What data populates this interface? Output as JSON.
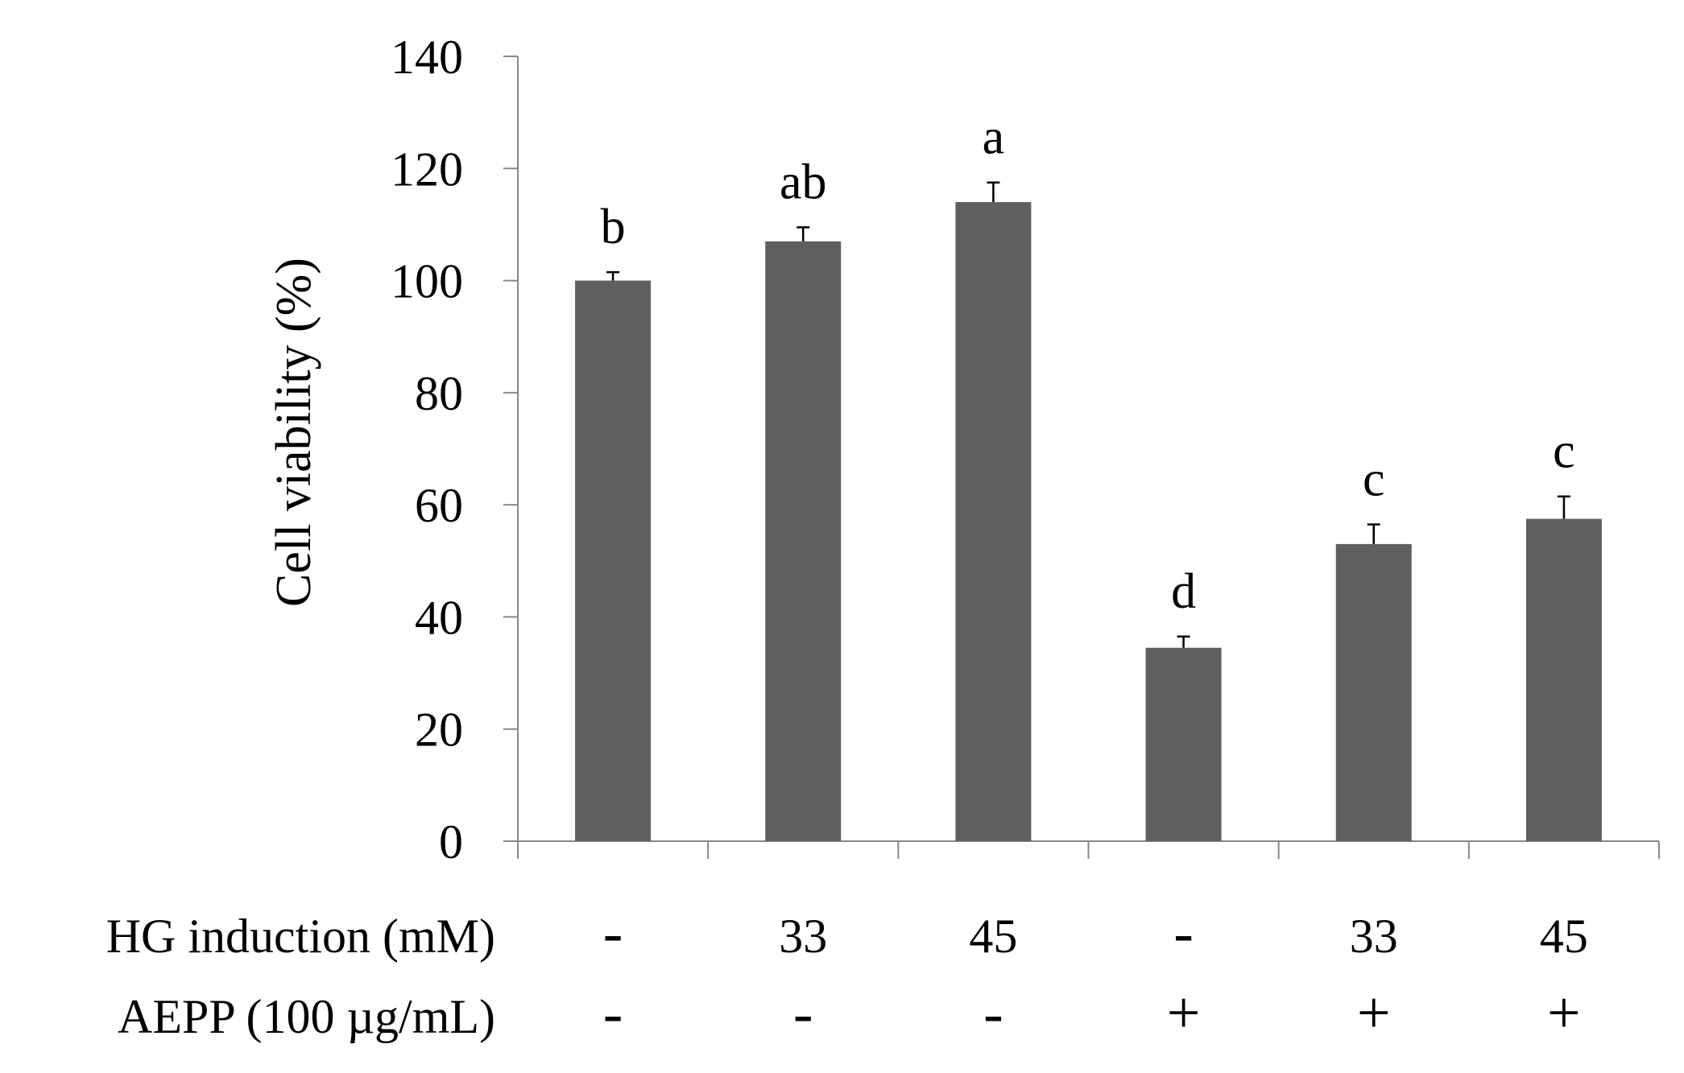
{
  "chart_data": {
    "type": "bar",
    "ylabel": "Cell viability (%)",
    "ylim": [
      0,
      140
    ],
    "yticks": [
      0,
      20,
      40,
      60,
      80,
      100,
      120,
      140
    ],
    "grid": false,
    "values": [
      100,
      107,
      114,
      34.5,
      53,
      57.5
    ],
    "errors": [
      1.5,
      2.5,
      3.5,
      2.0,
      3.5,
      4.0
    ],
    "significance": [
      "b",
      "ab",
      "a",
      "d",
      "c",
      "c"
    ],
    "bar_color": "#5f5f5f",
    "conditions": [
      {
        "label": "HG induction (mM)",
        "values": [
          "-",
          "33",
          "45",
          "-",
          "33",
          "45"
        ]
      },
      {
        "label": "AEPP (100 µg/mL)",
        "values": [
          "-",
          "-",
          "-",
          "+",
          "+",
          "+"
        ]
      }
    ]
  }
}
